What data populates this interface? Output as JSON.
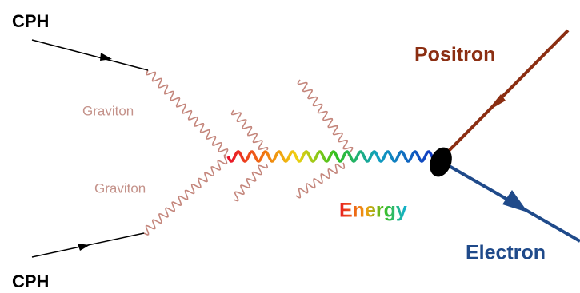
{
  "labels": {
    "cph_top": "CPH",
    "cph_bottom": "CPH",
    "graviton_top": "Graviton",
    "graviton_bottom": "Graviton",
    "energy": "Energy",
    "positron": "Positron",
    "electron": "Electron"
  }
}
